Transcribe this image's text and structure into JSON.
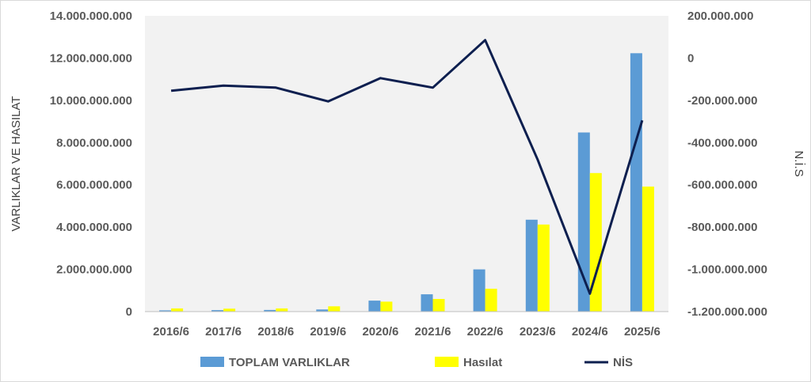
{
  "chart_data": {
    "type": "bar",
    "categories": [
      "2016/6",
      "2017/6",
      "2018/6",
      "2019/6",
      "2020/6",
      "2021/6",
      "2022/6",
      "2023/6",
      "2024/6",
      "2025/6"
    ],
    "series": [
      {
        "name": "TOPLAM VARLIKLAR",
        "type": "bar",
        "axis": "left",
        "color": "#5B9BD5",
        "values": [
          60000000,
          70000000,
          80000000,
          100000000,
          520000000,
          820000000,
          2000000000,
          4350000000,
          8480000000,
          12230000000
        ]
      },
      {
        "name": "Hasılat",
        "type": "bar",
        "axis": "left",
        "color": "#FFFF00",
        "values": [
          150000000,
          140000000,
          150000000,
          250000000,
          470000000,
          600000000,
          1080000000,
          4120000000,
          6560000000,
          5920000000
        ]
      },
      {
        "name": "NİS",
        "type": "line",
        "axis": "right",
        "color": "#0D1F4F",
        "values": [
          -155000000,
          -130000000,
          -140000000,
          -205000000,
          -95000000,
          -140000000,
          85000000,
          -480000000,
          -1115000000,
          -295000000
        ]
      }
    ],
    "ylabel": "VARLIKLAR VE HASILAT",
    "y2label": "N.İ.S",
    "ylim": [
      0,
      14000000000
    ],
    "y2lim": [
      -1200000000,
      200000000
    ],
    "yticks": [
      "14.000.000.000",
      "12.000.000.000",
      "10.000.000.000",
      "8.000.000.000",
      "6.000.000.000",
      "4.000.000.000",
      "2.000.000.000",
      "0"
    ],
    "y2ticks": [
      "200.000.000",
      "0",
      "-200.000.000",
      "-400.000.000",
      "-600.000.000",
      "-800.000.000",
      "-1.000.000.000",
      "-1.200.000.000"
    ],
    "grid": false,
    "legend": "bottom"
  }
}
